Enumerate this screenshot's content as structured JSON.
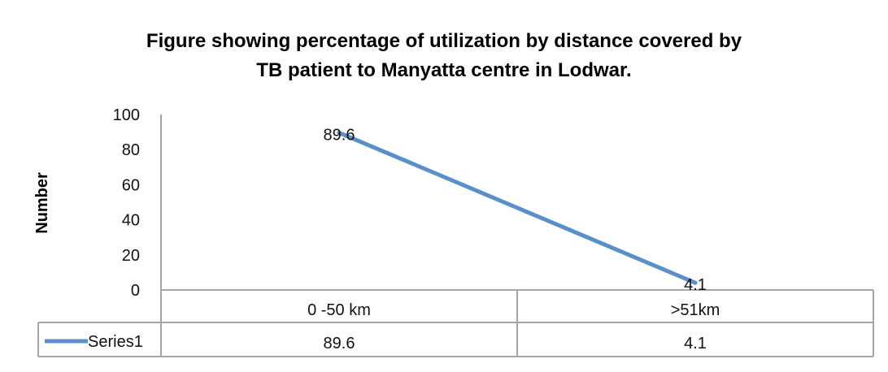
{
  "chart_data": {
    "type": "line",
    "title": [
      "Figure showing percentage of utilization  by distance covered by",
      "TB patient to Manyatta centre in Lodwar."
    ],
    "xlabel": "",
    "ylabel": "Number",
    "ylim": [
      0,
      100
    ],
    "yticks": [
      "0",
      "20",
      "40",
      "60",
      "80",
      "100"
    ],
    "categories": [
      "0 -50 km",
      ">51km"
    ],
    "series": [
      {
        "name": "Series1",
        "values": [
          89.6,
          4.1
        ],
        "labels": [
          "89.6",
          "4.1"
        ],
        "color": "#5b8fc9"
      }
    ],
    "data_table": true,
    "grid": false
  }
}
